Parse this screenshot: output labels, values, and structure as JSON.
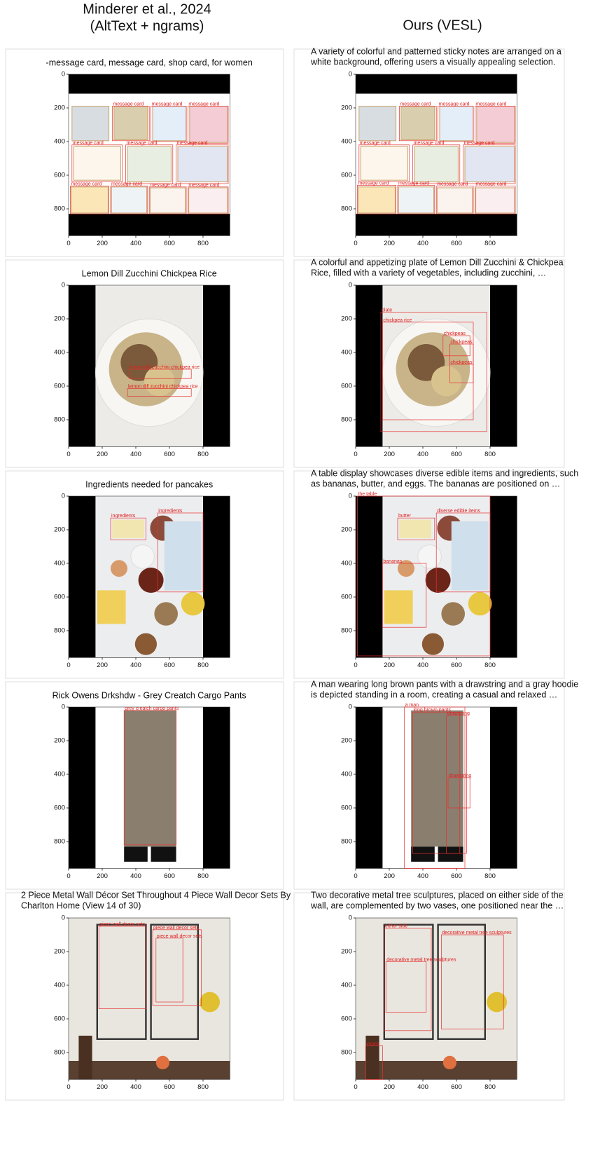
{
  "columns": [
    {
      "lines": [
        "Minderer et al., 2024",
        "(AltText + ngrams)"
      ]
    },
    {
      "lines": [
        "Ours (VESL)"
      ]
    }
  ],
  "axis_ticks": [
    0,
    200,
    400,
    600,
    800
  ],
  "rows": [
    {
      "left": {
        "caption_lines": [
          "-message card, message card, shop card, for women"
        ],
        "boxes": [
          {
            "label": "message card",
            "box": [
              260,
              190,
              480,
              395
            ]
          },
          {
            "label": "message card",
            "box": [
              490,
              190,
              700,
              400
            ]
          },
          {
            "label": "message card",
            "box": [
              710,
              190,
              950,
              410
            ]
          },
          {
            "label": "message card",
            "box": [
              20,
              420,
              320,
              640
            ]
          },
          {
            "label": "message card",
            "box": [
              340,
              420,
              620,
              650
            ]
          },
          {
            "label": "message card",
            "box": [
              640,
              420,
              950,
              650
            ]
          },
          {
            "label": "message card",
            "box": [
              10,
              665,
              240,
              830
            ]
          },
          {
            "label": "message card",
            "box": [
              250,
              665,
              470,
              830
            ]
          },
          {
            "label": "message card",
            "box": [
              480,
              670,
              700,
              830
            ]
          },
          {
            "label": "message card",
            "box": [
              710,
              670,
              950,
              830
            ]
          }
        ]
      },
      "right": {
        "caption_lines": [
          "A variety of colorful and patterned sticky notes are arranged on a",
          "white background, offering users a visually appealing selection."
        ],
        "boxes": [
          {
            "label": "message card",
            "box": [
              260,
              190,
              480,
              395
            ]
          },
          {
            "label": "message card",
            "box": [
              490,
              190,
              700,
              400
            ]
          },
          {
            "label": "message card",
            "box": [
              710,
              190,
              950,
              410
            ]
          },
          {
            "label": "message card",
            "box": [
              20,
              420,
              320,
              640
            ]
          },
          {
            "label": "message card",
            "box": [
              340,
              420,
              620,
              650
            ]
          },
          {
            "label": "message card",
            "box": [
              640,
              420,
              950,
              650
            ]
          },
          {
            "label": "message card",
            "box": [
              10,
              660,
              240,
              830
            ]
          },
          {
            "label": "message card",
            "box": [
              250,
              660,
              470,
              830
            ]
          },
          {
            "label": "message card",
            "box": [
              480,
              665,
              700,
              830
            ]
          },
          {
            "label": "message card",
            "box": [
              710,
              665,
              950,
              830
            ]
          }
        ]
      }
    },
    {
      "left": {
        "caption_lines": [
          "Lemon Dill Zucchini Chickpea Rice"
        ],
        "boxes": [
          {
            "label": "lemon dill zucchini chickpea rice",
            "box": [
              360,
              500,
              730,
              555
            ]
          },
          {
            "label": "lemon dill zucchini chickpea rice",
            "box": [
              350,
              615,
              730,
              660
            ]
          }
        ]
      },
      "right": {
        "caption_lines": [
          "A colorful and appetizing plate of Lemon Dill Zucchini & Chickpea",
          "Rice, filled with a variety of vegetables, including zucchini, …"
        ],
        "boxes": [
          {
            "label": "plate",
            "box": [
              150,
              160,
              780,
              870
            ]
          },
          {
            "label": "chickpea rice",
            "box": [
              160,
              220,
              700,
              800
            ]
          },
          {
            "label": "chickpeas",
            "box": [
              520,
              300,
              680,
              420
            ]
          },
          {
            "label": "chickpeas",
            "box": [
              560,
              350,
              700,
              470
            ]
          },
          {
            "label": "chickpeas",
            "box": [
              560,
              470,
              700,
              580
            ]
          }
        ]
      }
    },
    {
      "left": {
        "caption_lines": [
          "Ingredients needed for pancakes"
        ],
        "boxes": [
          {
            "label": "ingredients",
            "box": [
              250,
              130,
              460,
              260
            ]
          },
          {
            "label": "ingredients",
            "box": [
              530,
              100,
              800,
              570
            ]
          }
        ]
      },
      "right": {
        "caption_lines": [
          "A table display showcases diverse edible items and ingredients, such",
          "as bananas, butter, and eggs. The bananas are positioned on …"
        ],
        "boxes": [
          {
            "label": "the table",
            "box": [
              10,
              0,
              800,
              950
            ]
          },
          {
            "label": "butter",
            "box": [
              250,
              130,
              470,
              260
            ]
          },
          {
            "label": "diverse edible items",
            "box": [
              480,
              100,
              800,
              570
            ]
          },
          {
            "label": "bananas",
            "box": [
              160,
              400,
              420,
              780
            ]
          }
        ]
      }
    },
    {
      "left": {
        "caption_lines": [
          "Rick Owens Drkshdw - Grey Creatch Cargo Pants"
        ],
        "boxes": [
          {
            "label": "grey creatch cargo pants",
            "box": [
              330,
              20,
              640,
              820
            ]
          }
        ]
      },
      "right": {
        "caption_lines": [
          "A man wearing long brown pants with a drawstring and a gray hoodie",
          "is depicted standing in a room, creating a casual and relaxed …"
        ],
        "boxes": [
          {
            "label": "a man",
            "box": [
              290,
              0,
              650,
              960
            ]
          },
          {
            "label": "long brown pants",
            "box": [
              340,
              30,
              620,
              870
            ]
          },
          {
            "label": "drawstring",
            "box": [
              540,
              50,
              660,
              870
            ]
          },
          {
            "label": "drawstring",
            "box": [
              550,
              420,
              680,
              600
            ]
          }
        ]
      }
    },
    {
      "left": {
        "caption_lines": [
          "2 Piece Metal Wall Décor Set Throughout 4 Piece Wall Decor Sets By",
          "Charlton Home (View 14 of 30)"
        ],
        "boxes": [
          {
            "label": "piece wall decor sets",
            "box": [
              180,
              50,
              460,
              540
            ]
          },
          {
            "label": "piece wall decor sets",
            "box": [
              500,
              70,
              790,
              520
            ]
          },
          {
            "label": "piece wall decor sets",
            "box": [
              520,
              120,
              680,
              500
            ]
          }
        ]
      },
      "right": {
        "caption_lines": [
          "Two decorative metal tree sculptures, placed on either side of the",
          "wall, are complemented by two vases, one positioned near the …"
        ],
        "boxes": [
          {
            "label": "either side",
            "box": [
              170,
              60,
              450,
              670
            ]
          },
          {
            "label": "decorative metal tree sculptures",
            "box": [
              510,
              100,
              880,
              660
            ]
          },
          {
            "label": "decorative metal tree sculptures",
            "box": [
              180,
              260,
              420,
              560
            ]
          },
          {
            "label": "vases",
            "box": [
              60,
              760,
              160,
              960
            ]
          }
        ]
      }
    }
  ]
}
